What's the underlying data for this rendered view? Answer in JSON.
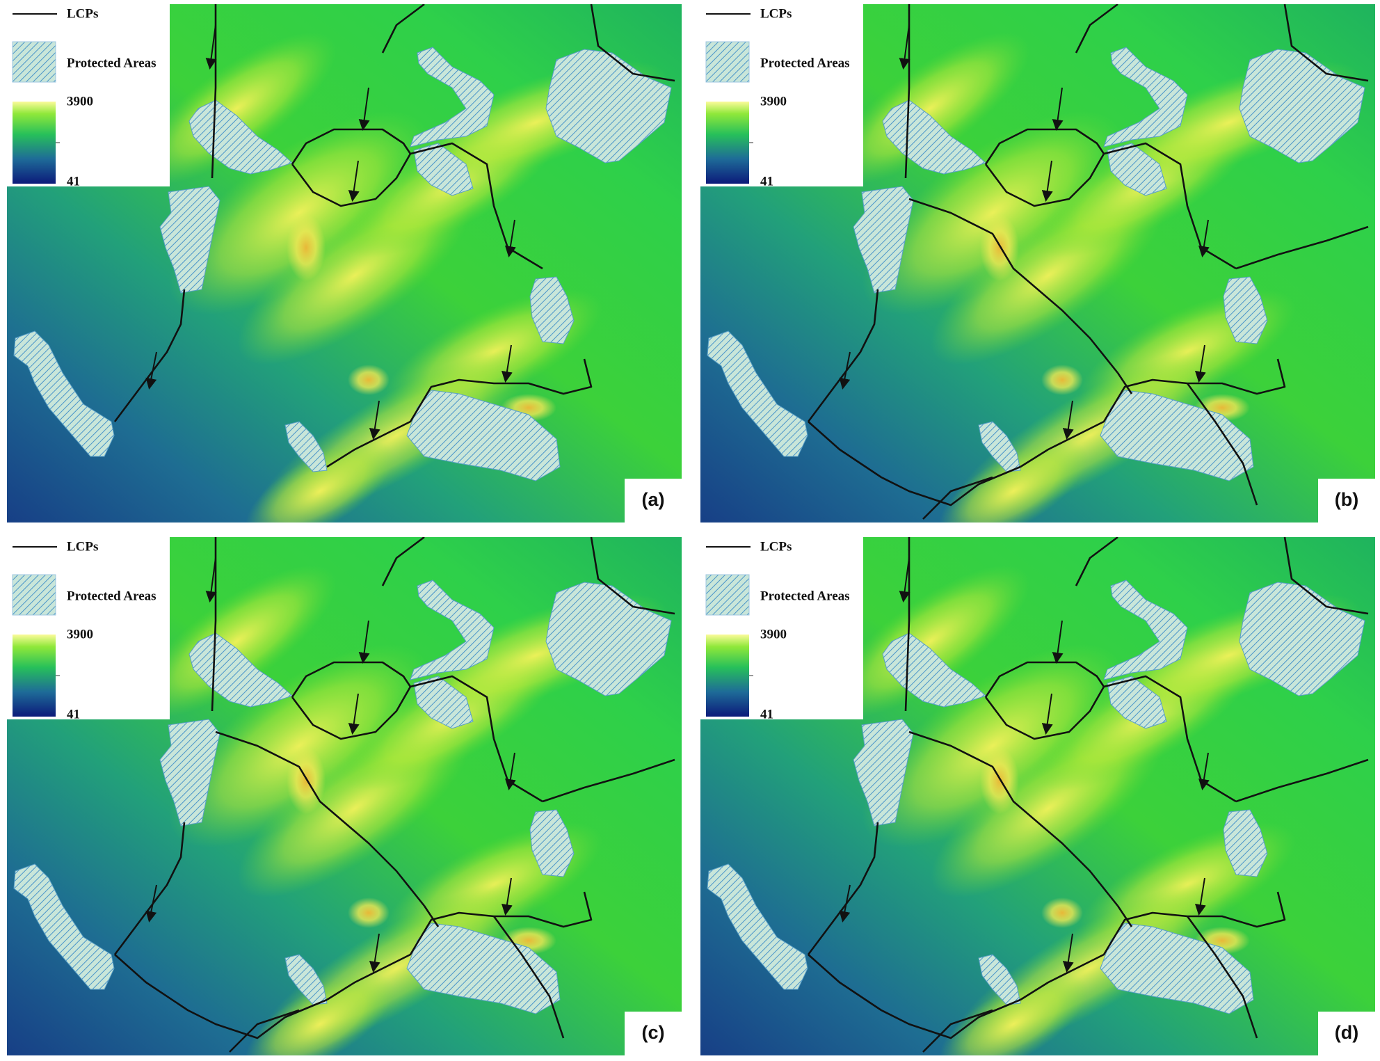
{
  "panels": [
    {
      "label": "(a)",
      "legend": {
        "line": "LCPs",
        "area": "Protected Areas",
        "max": 3900,
        "min": 41
      }
    },
    {
      "label": "(b)",
      "legend": {
        "line": "LCPs",
        "area": "Protected Areas",
        "max": 3900,
        "min": 41
      }
    },
    {
      "label": "(c)",
      "legend": {
        "line": "LCPs",
        "area": "Protected Areas",
        "max": 3900,
        "min": 41
      }
    },
    {
      "label": "(d)",
      "legend": {
        "line": "LCPs",
        "area": "Protected Areas",
        "max": 3900,
        "min": 41
      }
    }
  ]
}
